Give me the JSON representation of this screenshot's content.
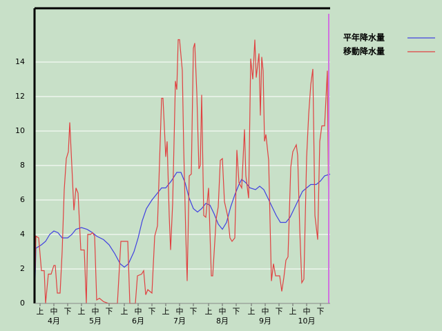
{
  "chart_data": {
    "type": "line",
    "legend": "right",
    "grid": true,
    "xlim": [
      0,
      214.5
    ],
    "ylim": [
      0,
      17.12
    ],
    "yticks": [
      0,
      2,
      4,
      6,
      8,
      10,
      12,
      14
    ],
    "xticks": [
      {
        "value": 4.5,
        "label": "上"
      },
      {
        "value": 14.5,
        "label": "中"
      },
      {
        "value": 24.5,
        "label": "下"
      },
      {
        "value": 34.5,
        "label": "上"
      },
      {
        "value": 44.5,
        "label": "中"
      },
      {
        "value": 54.5,
        "label": "下"
      },
      {
        "value": 65.5,
        "label": "上"
      },
      {
        "value": 75.5,
        "label": "中"
      },
      {
        "value": 85.5,
        "label": "下"
      },
      {
        "value": 95.5,
        "label": "上"
      },
      {
        "value": 105.5,
        "label": "中"
      },
      {
        "value": 115.5,
        "label": "下"
      },
      {
        "value": 126.5,
        "label": "上"
      },
      {
        "value": 136.5,
        "label": "中"
      },
      {
        "value": 146.5,
        "label": "下"
      },
      {
        "value": 157.5,
        "label": "上"
      },
      {
        "value": 167.5,
        "label": "中"
      },
      {
        "value": 177.5,
        "label": "下"
      },
      {
        "value": 187.5,
        "label": "上"
      },
      {
        "value": 197.5,
        "label": "中"
      },
      {
        "value": 207.5,
        "label": "下"
      }
    ],
    "month_labels": [
      {
        "value": 14.5,
        "label": "4月"
      },
      {
        "value": 44.5,
        "label": "5月"
      },
      {
        "value": 75.5,
        "label": "6月"
      },
      {
        "value": 105.5,
        "label": "7月"
      },
      {
        "value": 136.5,
        "label": "8月"
      },
      {
        "value": 167.5,
        "label": "9月"
      },
      {
        "value": 197.5,
        "label": "10月"
      }
    ],
    "series": [
      {
        "name": "平年降水量",
        "color": "#4040e0",
        "x": [
          0.5,
          1.5,
          5.5,
          8.5,
          11.5,
          14.5,
          17.5,
          20.5,
          24.5,
          27.5,
          30.5,
          34.5,
          38.5,
          42.5,
          45.5,
          50.5,
          54.5,
          58.5,
          62.5,
          65.5,
          68.5,
          72.5,
          75.5,
          78.5,
          81.5,
          85.5,
          89.5,
          92.5,
          95.5,
          99.5,
          103.5,
          106.5,
          109.5,
          112.5,
          115.5,
          118.5,
          121.5,
          124.5,
          127.5,
          130.5,
          133.5,
          136.5,
          139.5,
          142.5,
          145.5,
          148.5,
          150.5,
          153.5,
          156.5,
          160.5,
          163.5,
          166.5,
          169.5,
          172.5,
          175.5,
          178.5,
          182.5,
          185.5,
          188.5,
          191.5,
          194.5,
          197.5,
          200.5,
          204.5,
          207.5,
          210.5,
          214.5
        ],
        "values": [
          0,
          3.2,
          3.4,
          3.6,
          4.0,
          4.2,
          4.1,
          3.8,
          3.8,
          4.0,
          4.3,
          4.4,
          4.3,
          4.1,
          3.9,
          3.7,
          3.4,
          2.9,
          2.3,
          2.1,
          2.3,
          3.0,
          3.8,
          4.8,
          5.5,
          6.0,
          6.4,
          6.7,
          6.7,
          7.1,
          7.6,
          7.6,
          7.0,
          6.1,
          5.5,
          5.3,
          5.5,
          5.8,
          5.7,
          5.2,
          4.6,
          4.3,
          4.7,
          5.6,
          6.3,
          6.9,
          7.2,
          7.0,
          6.7,
          6.6,
          6.8,
          6.6,
          6.1,
          5.6,
          5.1,
          4.7,
          4.7,
          5.0,
          5.5,
          6.0,
          6.5,
          6.7,
          6.9,
          6.9,
          7.1,
          7.4,
          7.5
        ]
      },
      {
        "name": "移動降水量",
        "color": "#e04040",
        "x": [
          0.5,
          1.5,
          3.5,
          5.5,
          7.5,
          8.5,
          10.5,
          12.5,
          14.5,
          15.5,
          17,
          19,
          20.5,
          22,
          23.5,
          25,
          26,
          27.5,
          29,
          30.5,
          32,
          34,
          36.5,
          38,
          39,
          41,
          42.5,
          44,
          45.5,
          47.5,
          50.5,
          54,
          60.5,
          63,
          68,
          69.5,
          73.5,
          75,
          78,
          79.5,
          81,
          82.5,
          85.5,
          87.5,
          89.5,
          91,
          92.5,
          93.5,
          95.5,
          96.5,
          98,
          99,
          100.5,
          102.5,
          103.5,
          104.5,
          105.5,
          107.5,
          108.5,
          110,
          111,
          112.5,
          114,
          115.5,
          116.5,
          118,
          119.5,
          120.5,
          121.5,
          123,
          124.5,
          126.5,
          128.5,
          129.5,
          132,
          133.5,
          135,
          136.5,
          138,
          140.5,
          142,
          143.5,
          145.5,
          147,
          148.5,
          150.5,
          152.5,
          153.5,
          155.5,
          157,
          158.5,
          160,
          161,
          163,
          164,
          165,
          166,
          167,
          168,
          170,
          172,
          173.5,
          175,
          178,
          179.5,
          181,
          182.5,
          184,
          186,
          187.5,
          190,
          191,
          192.5,
          194,
          195.5,
          197.5,
          199,
          200.5,
          202,
          203.5,
          205.5,
          207,
          208.5,
          210.5,
          212.5,
          213.5
        ],
        "values": [
          0,
          3.9,
          3.8,
          1.9,
          1.9,
          0,
          1.7,
          1.7,
          2.2,
          2.2,
          0.6,
          0.6,
          3,
          6.6,
          8.4,
          8.8,
          10.5,
          8,
          5.4,
          6.7,
          6.4,
          3.1,
          3.1,
          0,
          4,
          4,
          4.1,
          3.9,
          0.2,
          0.3,
          0.1,
          0,
          0,
          3.6,
          3.6,
          0,
          0,
          1.6,
          1.7,
          1.9,
          0.5,
          0.8,
          0.6,
          3.9,
          4.5,
          8.2,
          11.9,
          11.9,
          8.5,
          9.4,
          5.1,
          3.1,
          5.8,
          12.9,
          12.4,
          15.3,
          15.3,
          13.5,
          9,
          4,
          1.3,
          7.4,
          7.5,
          14.8,
          15.1,
          12.2,
          7.8,
          8,
          12.1,
          5.1,
          5,
          6.7,
          1.6,
          1.6,
          4.9,
          5.6,
          8.3,
          8.4,
          5.9,
          5,
          3.8,
          3.6,
          3.8,
          8.9,
          7,
          6.7,
          10.1,
          7.4,
          6.1,
          14.2,
          13,
          15.3,
          13.1,
          14.5,
          10.9,
          14.3,
          13.5,
          9.4,
          9.8,
          8.3,
          1.3,
          2.3,
          1.6,
          1.6,
          0.7,
          1.5,
          2.5,
          2.7,
          7.9,
          8.8,
          9.2,
          8.6,
          4.3,
          1.2,
          1.4,
          8.5,
          11,
          12.7,
          13.6,
          5.1,
          3.7,
          9.4,
          10.3,
          10.3,
          13.5,
          4.9
        ]
      }
    ]
  }
}
